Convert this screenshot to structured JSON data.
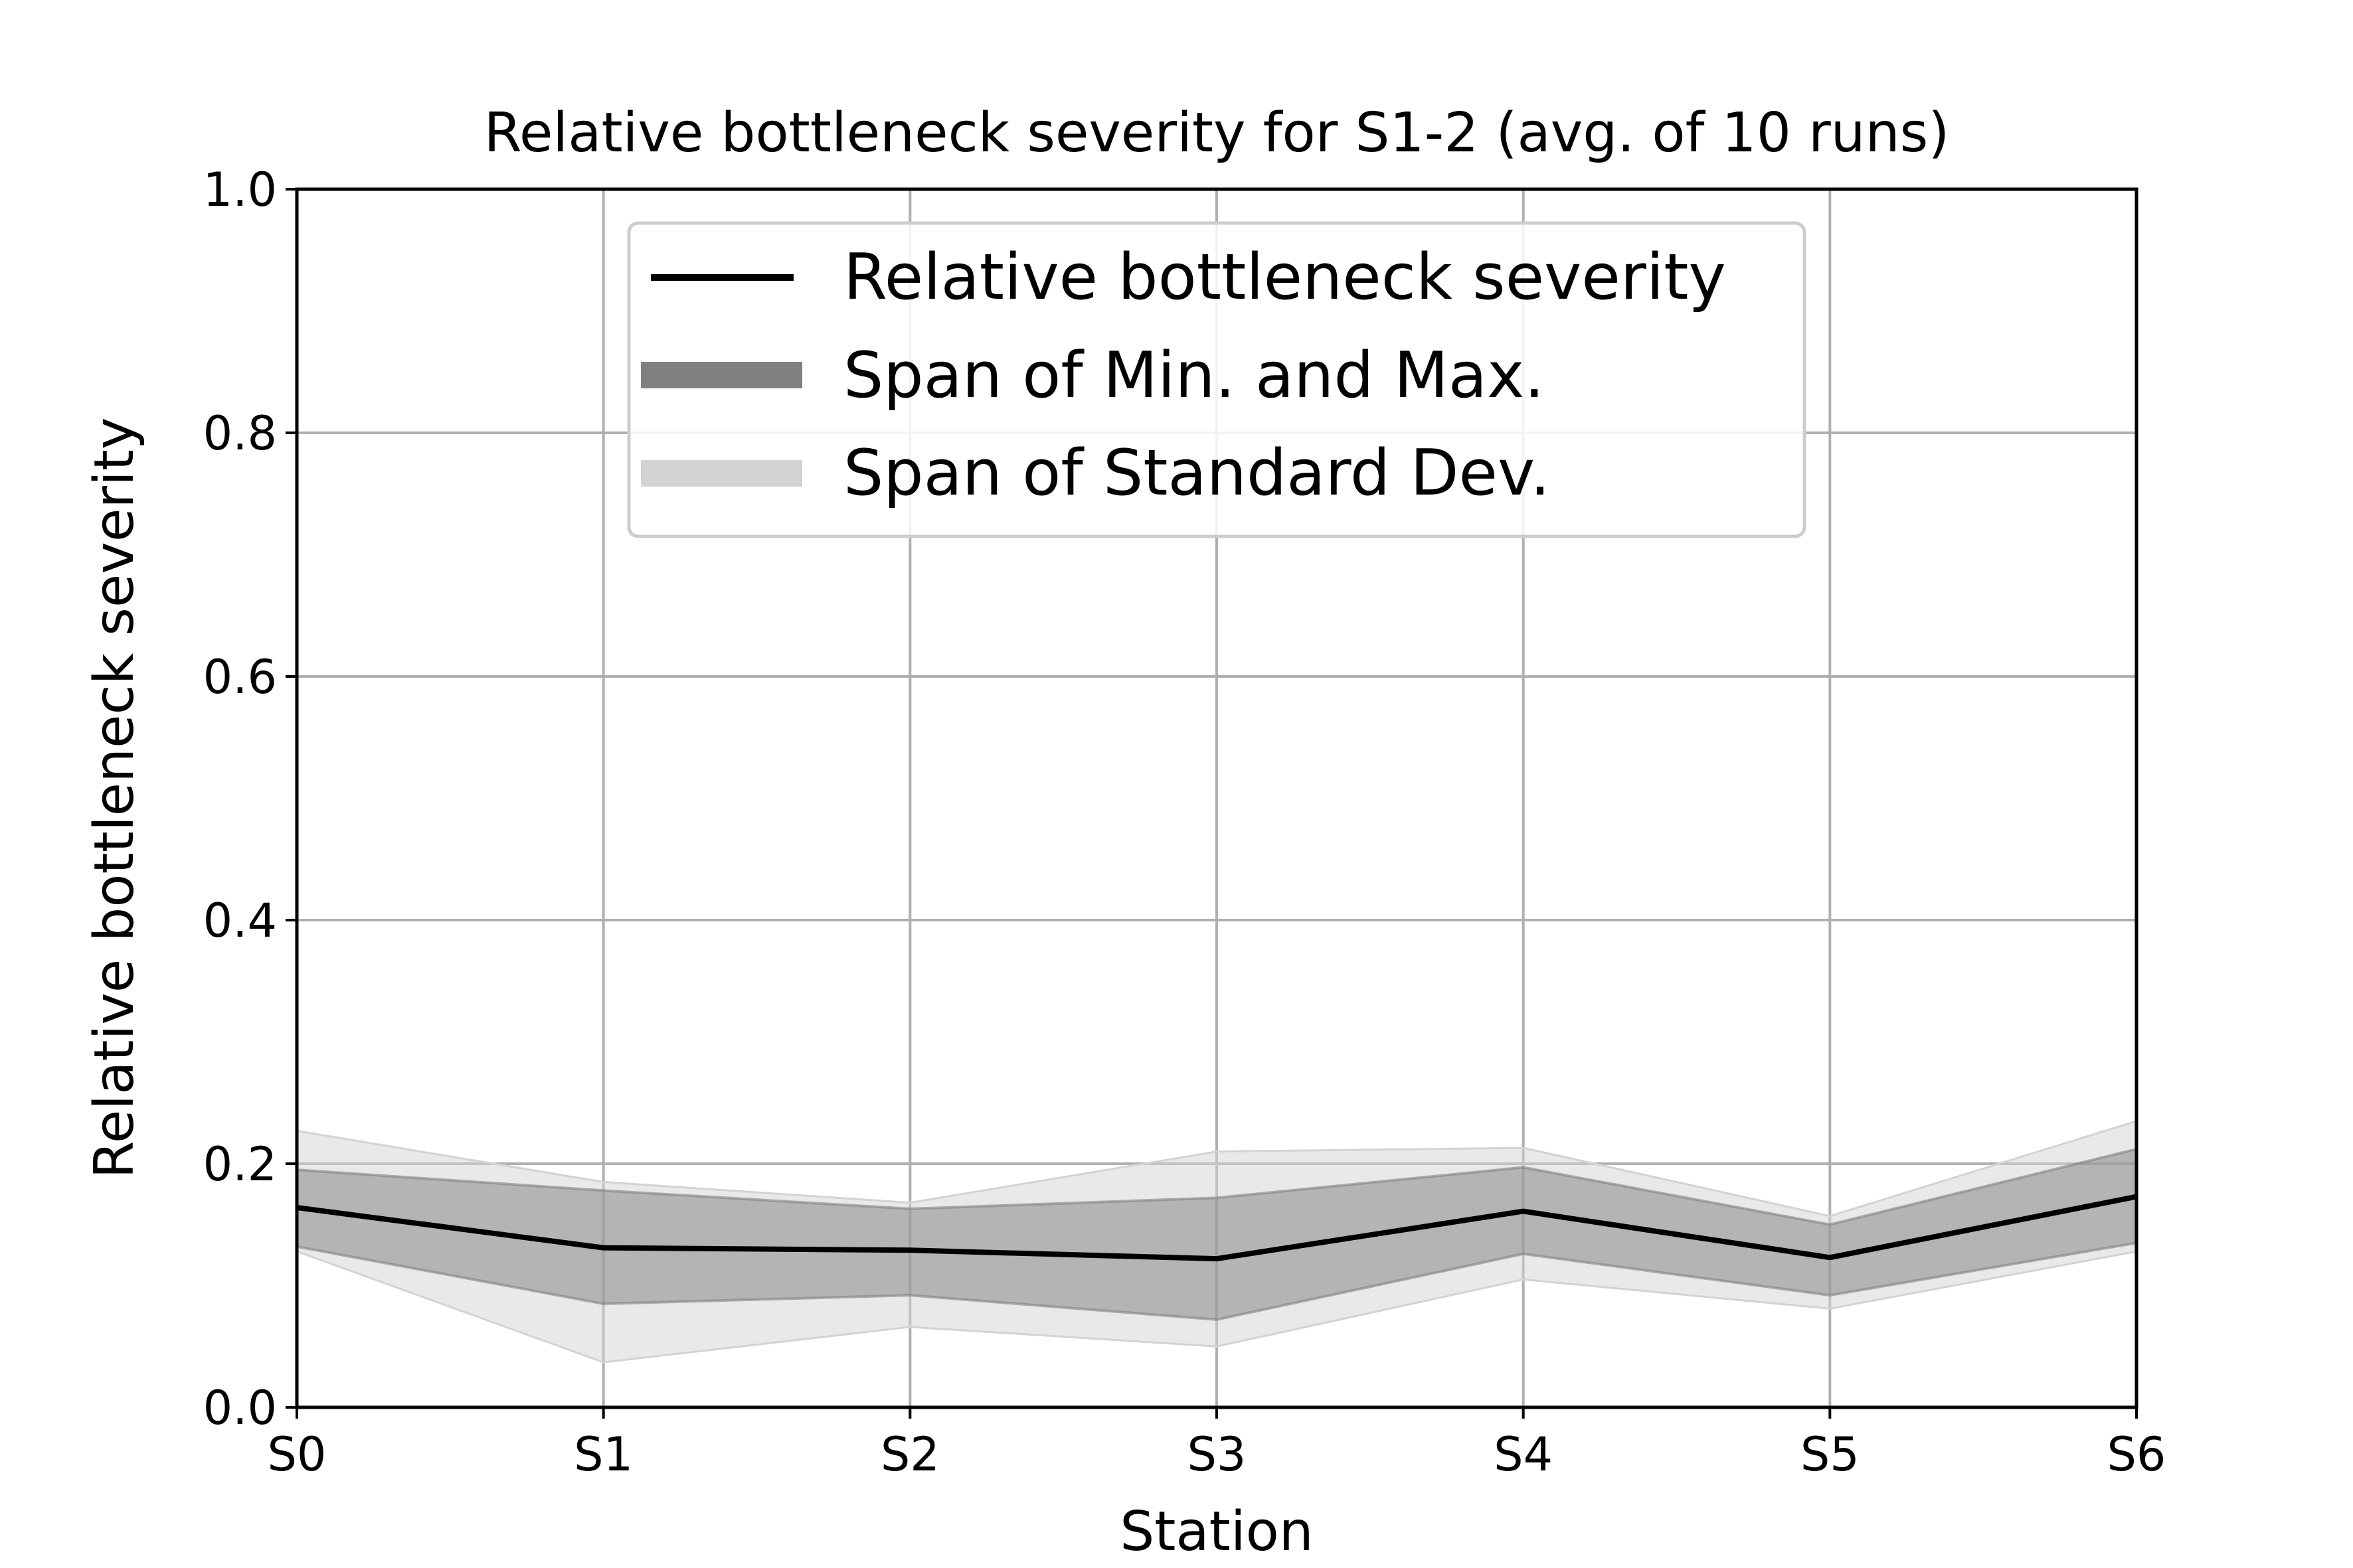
{
  "chart_data": {
    "type": "line",
    "title": "Relative bottleneck severity for S1-2 (avg. of 10 runs)",
    "xlabel": "Station",
    "ylabel": "Relative bottleneck severity",
    "categories": [
      "S0",
      "S1",
      "S2",
      "S3",
      "S4",
      "S5",
      "S6"
    ],
    "ylim": [
      0,
      1
    ],
    "yticks": [
      "0.0",
      "0.2",
      "0.4",
      "0.6",
      "0.8",
      "1.0"
    ],
    "grid": true,
    "legend_position": "top-center",
    "series": [
      {
        "name": "Relative bottleneck severity",
        "kind": "line",
        "color": "#000000",
        "values": [
          0.164,
          0.131,
          0.129,
          0.122,
          0.161,
          0.123,
          0.173
        ]
      },
      {
        "name": "Span of Min. and Max.",
        "kind": "band",
        "color": "#808080",
        "lower": [
          0.132,
          0.085,
          0.092,
          0.072,
          0.126,
          0.092,
          0.135
        ],
        "upper": [
          0.195,
          0.178,
          0.163,
          0.172,
          0.197,
          0.15,
          0.212
        ]
      },
      {
        "name": "Span of Standard Dev.",
        "kind": "band",
        "color": "#d3d3d3",
        "lower": [
          0.128,
          0.037,
          0.066,
          0.05,
          0.105,
          0.081,
          0.128
        ],
        "upper": [
          0.227,
          0.185,
          0.168,
          0.21,
          0.213,
          0.157,
          0.235
        ]
      }
    ]
  }
}
